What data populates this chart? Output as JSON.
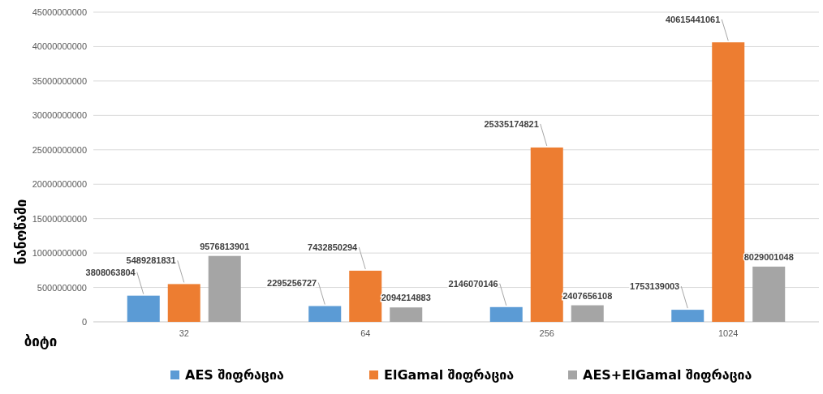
{
  "chart_data": {
    "type": "bar",
    "xlabel": "ბიტი",
    "ylabel": "ნანოწამი",
    "categories": [
      "32",
      "64",
      "256",
      "1024"
    ],
    "series": [
      {
        "name": "AES შიფრაცია",
        "color": "#5b9bd5",
        "values": [
          3808063804,
          2295256727,
          2146070146,
          1753139003
        ]
      },
      {
        "name": "ElGamal შიფრაცია",
        "color": "#ed7d31",
        "values": [
          5489281831,
          7432850294,
          25335174821,
          40615441061
        ]
      },
      {
        "name": "AES+ElGamal შიფრაცია",
        "color": "#a5a5a5",
        "values": [
          9576813901,
          2094214883,
          2407656108,
          8029001048
        ]
      }
    ],
    "ylim": [
      0,
      45000000000
    ],
    "yticks": [
      0,
      5000000000,
      10000000000,
      15000000000,
      20000000000,
      25000000000,
      30000000000,
      35000000000,
      40000000000,
      45000000000
    ],
    "grid": "y",
    "legend": "bottom",
    "data_labels": true
  }
}
